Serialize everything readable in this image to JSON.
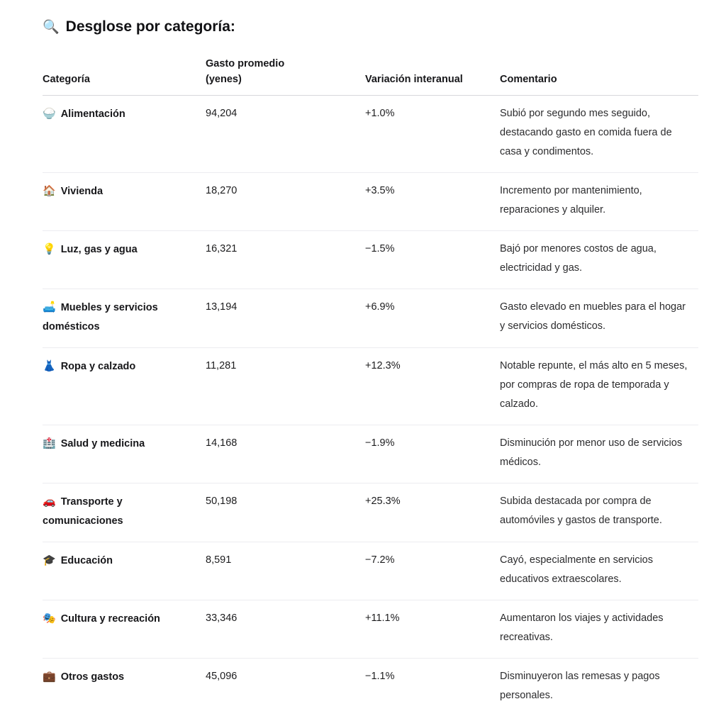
{
  "page": {
    "title_icon": "🔍",
    "title": "Desglose por categoría:"
  },
  "colors": {
    "text": "#1c1c1e",
    "header_border": "#d7d7dc",
    "row_border": "#ececf0"
  },
  "table": {
    "columns": [
      "Categoría",
      "Gasto promedio (yenes)",
      "Variación interanual",
      "Comentario"
    ],
    "rows": [
      {
        "icon": "🍚",
        "category": "Alimentación",
        "gasto": "94,204",
        "variacion": "+1.0%",
        "comentario": "Subió por segundo mes seguido, destacando gasto en comida fuera de casa y condimentos."
      },
      {
        "icon": "🏠",
        "category": "Vivienda",
        "gasto": "18,270",
        "variacion": "+3.5%",
        "comentario": "Incremento por mantenimiento, reparaciones y alquiler."
      },
      {
        "icon": "💡",
        "category": "Luz, gas y agua",
        "gasto": "16,321",
        "variacion": "−1.5%",
        "comentario": "Bajó por menores costos de agua, electricidad y gas."
      },
      {
        "icon": "🛋️",
        "category": "Muebles y servicios domésticos",
        "gasto": "13,194",
        "variacion": "+6.9%",
        "comentario": "Gasto elevado en muebles para el hogar y servicios domésticos."
      },
      {
        "icon": "👗",
        "category": "Ropa y calzado",
        "gasto": "11,281",
        "variacion": "+12.3%",
        "comentario": "Notable repunte, el más alto en 5 meses, por compras de ropa de temporada y calzado."
      },
      {
        "icon": "🏥",
        "category": "Salud y medicina",
        "gasto": "14,168",
        "variacion": "−1.9%",
        "comentario": "Disminución por menor uso de servicios médicos."
      },
      {
        "icon": "🚗",
        "category": "Transporte y comunicaciones",
        "gasto": "50,198",
        "variacion": "+25.3%",
        "comentario": "Subida destacada por compra de automóviles y gastos de transporte."
      },
      {
        "icon": "🎓",
        "category": "Educación",
        "gasto": "8,591",
        "variacion": "−7.2%",
        "comentario": "Cayó, especialmente en servicios educativos extraescolares."
      },
      {
        "icon": "🎭",
        "category": "Cultura y recreación",
        "gasto": "33,346",
        "variacion": "+11.1%",
        "comentario": "Aumentaron los viajes y actividades recreativas."
      },
      {
        "icon": "💼",
        "category": "Otros gastos",
        "gasto": "45,096",
        "variacion": "−1.1%",
        "comentario": "Disminuyeron las remesas y pagos personales."
      }
    ]
  }
}
